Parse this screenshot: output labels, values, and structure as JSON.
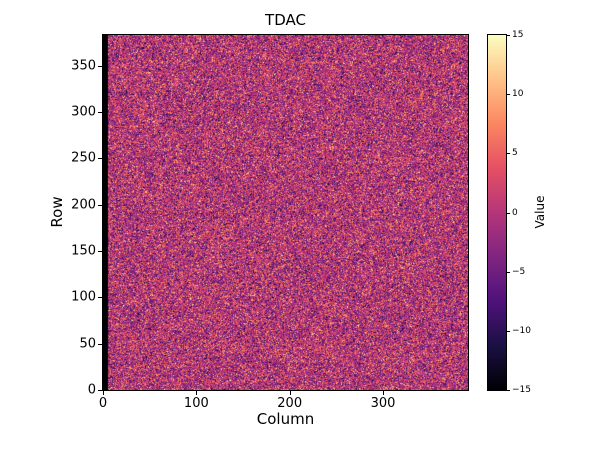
{
  "chart_data": {
    "type": "heatmap",
    "title": "TDAC",
    "xlabel": "Column",
    "ylabel": "Row",
    "x_range": [
      0,
      391
    ],
    "y_range": [
      0,
      383
    ],
    "x_ticks": [
      0,
      100,
      200,
      300
    ],
    "y_ticks": [
      0,
      50,
      100,
      150,
      200,
      250,
      300,
      350
    ],
    "colorbar": {
      "label": "Value",
      "vmin": -15,
      "vmax": 15,
      "ticks": [
        15,
        10,
        5,
        0,
        -5,
        -10,
        -15
      ]
    },
    "colormap": {
      "name": "magma",
      "anchors": [
        "#000004",
        "#1c1044",
        "#4f127b",
        "#812581",
        "#b5367a",
        "#e55064",
        "#fb8761",
        "#fec287",
        "#fcfdbf"
      ]
    },
    "data_summary": {
      "description": "per-pixel random noise centered near 0 spanning roughly -15 to 15; leftmost few columns uniformly at minimum (black stripe)",
      "mean": 0,
      "std": 5,
      "clip": [
        -15,
        15
      ],
      "black_stripe_columns": 5,
      "seed": 7
    }
  }
}
